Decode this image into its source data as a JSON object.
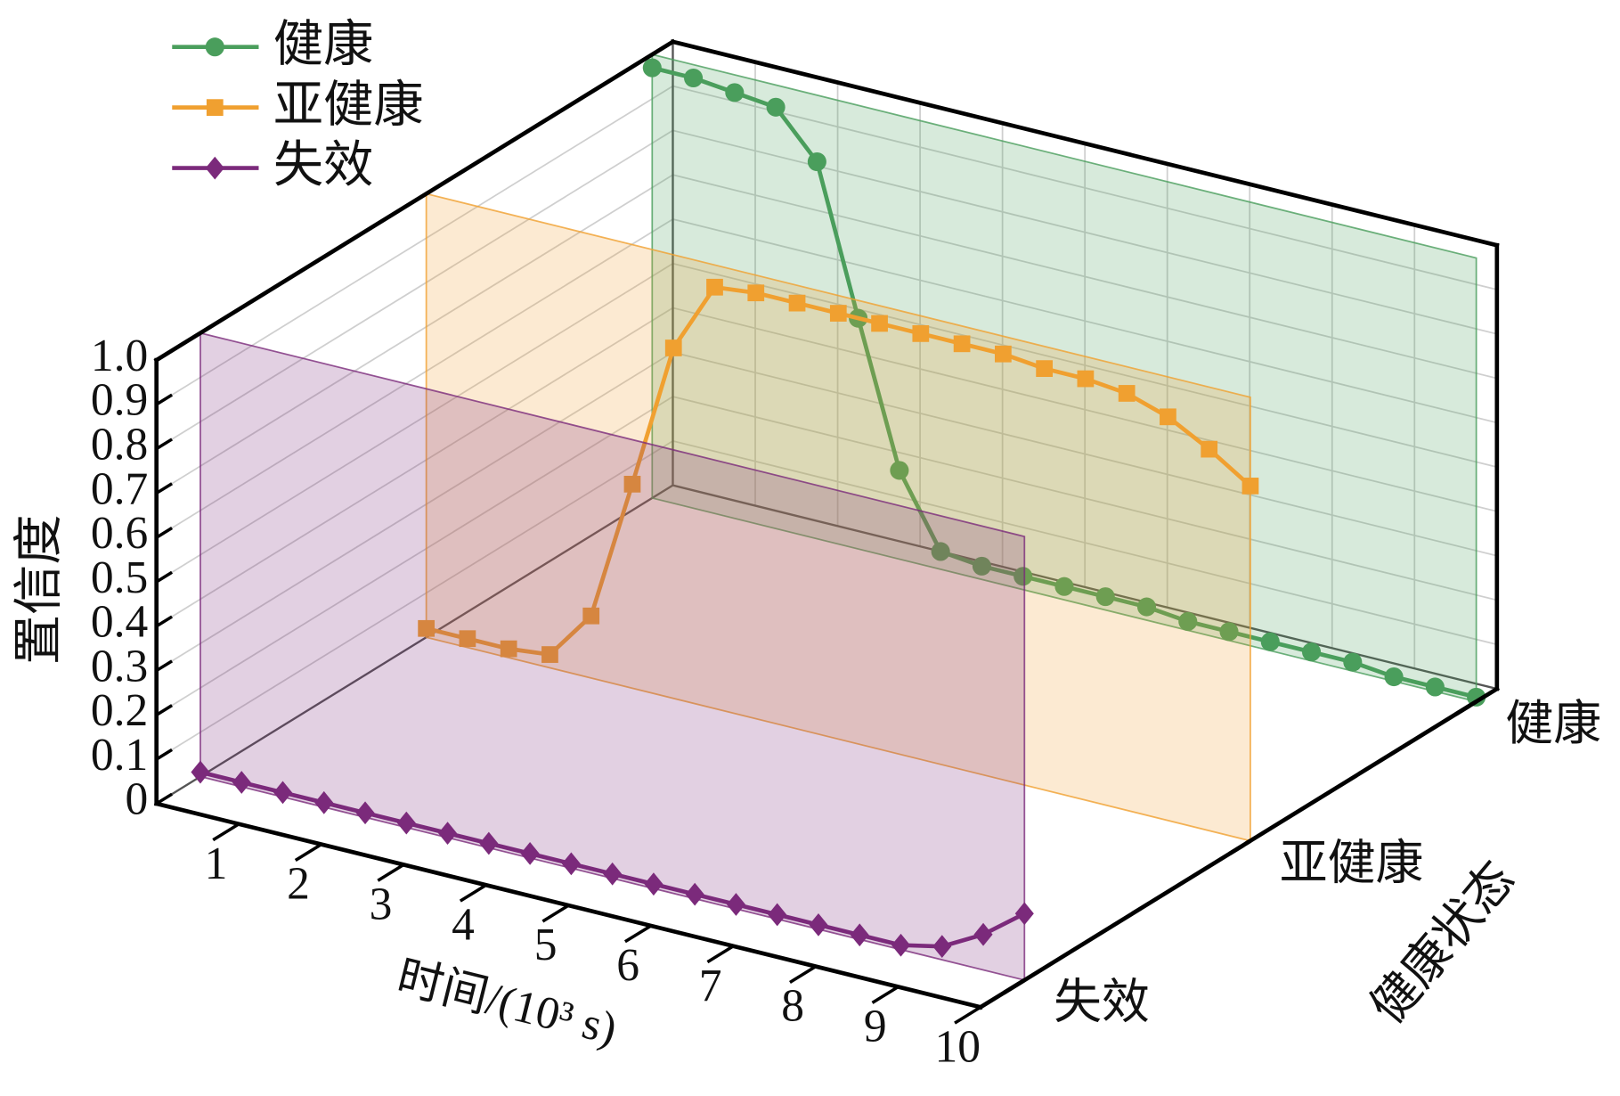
{
  "chart_data": {
    "type": "line3d",
    "ylabel": "置信度",
    "xlabel": "时间/(10³ s)",
    "zlabel": "健康状态",
    "z_categories": [
      "失效",
      "亚健康",
      "健康"
    ],
    "x": [
      0,
      0.5,
      1,
      1.5,
      2,
      2.5,
      3,
      3.5,
      4,
      4.5,
      5,
      5.5,
      6,
      6.5,
      7,
      7.5,
      8,
      8.5,
      9,
      9.5,
      10
    ],
    "xlim": [
      0,
      10
    ],
    "xticks": [
      1,
      2,
      3,
      4,
      5,
      6,
      7,
      8,
      9,
      10
    ],
    "ylim": [
      0,
      1
    ],
    "yticks": [
      0,
      0.1,
      0.2,
      0.3,
      0.4,
      0.5,
      0.6,
      0.7,
      0.8,
      0.9,
      {
        "value": 1,
        "label": "1.0"
      }
    ],
    "grid": true,
    "legend": "upper left",
    "series": [
      {
        "name": "健康",
        "color": "#4a9e5c",
        "marker": "circle",
        "values": [
          0.97,
          0.97,
          0.96,
          0.95,
          0.85,
          0.52,
          0.2,
          0.04,
          0.03,
          0.03,
          0.03,
          0.03,
          0.03,
          0.02,
          0.02,
          0.02,
          0.02,
          0.02,
          0.01,
          0.01,
          0.01
        ]
      },
      {
        "name": "亚健康",
        "color": "#f0a030",
        "marker": "square",
        "values": [
          0.02,
          0.02,
          0.02,
          0.03,
          0.14,
          0.46,
          0.79,
          0.95,
          0.96,
          0.96,
          0.96,
          0.96,
          0.96,
          0.96,
          0.96,
          0.95,
          0.95,
          0.94,
          0.91,
          0.86,
          0.8
        ]
      },
      {
        "name": "失效",
        "color": "#7b2a7b",
        "marker": "diamond",
        "values": [
          0.01,
          0.01,
          0.01,
          0.01,
          0.01,
          0.01,
          0.01,
          0.01,
          0.01,
          0.01,
          0.01,
          0.01,
          0.01,
          0.01,
          0.01,
          0.01,
          0.01,
          0.01,
          0.03,
          0.08,
          0.15
        ]
      }
    ]
  }
}
